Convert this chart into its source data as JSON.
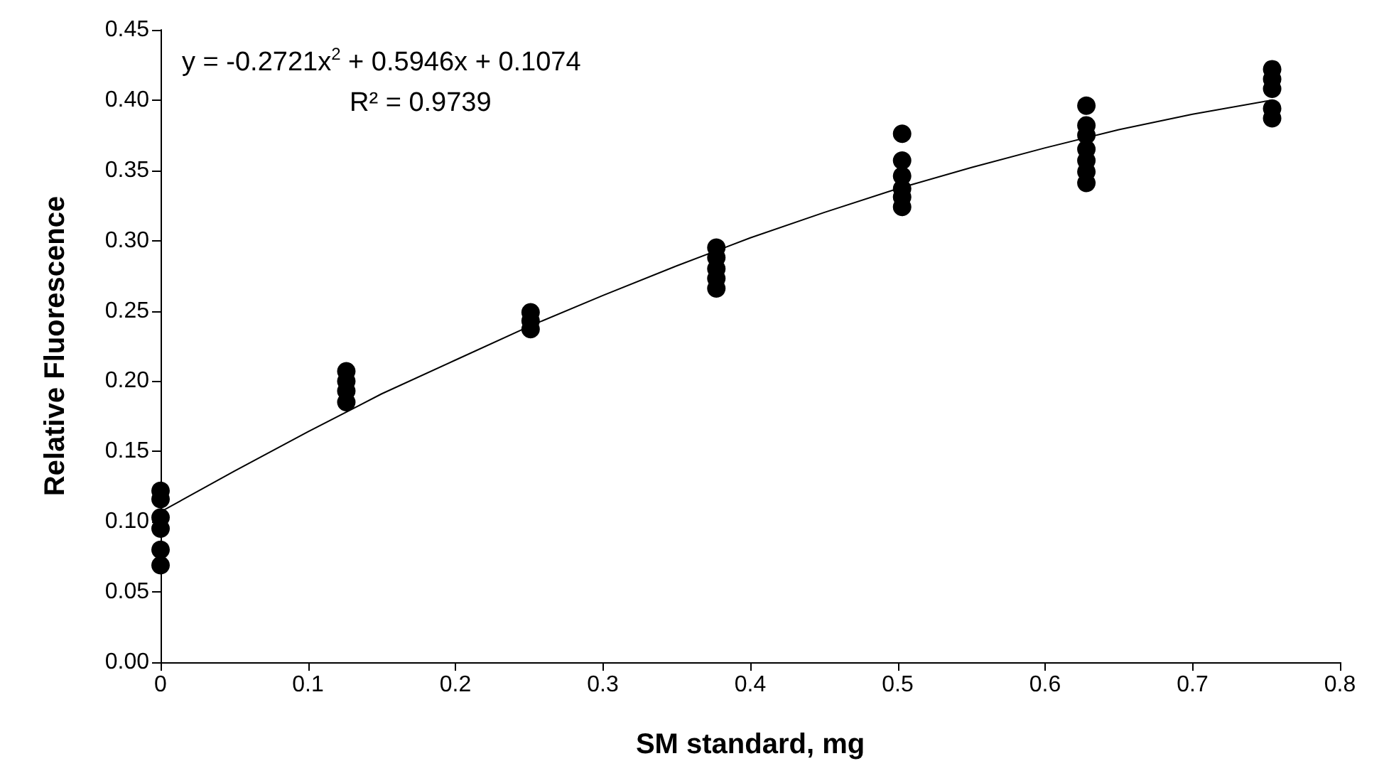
{
  "chart_data": {
    "type": "scatter",
    "xlabel": "SM standard, mg",
    "ylabel": "Relative Fluorescence",
    "annotations": [
      "y = -0.2721x$^{2}$ + 0.5946x + 0.1074",
      "R² = 0.9739"
    ],
    "xlim": [
      0,
      0.8
    ],
    "xticks": [
      0,
      0.1,
      0.2,
      0.3,
      0.4,
      0.5,
      0.6,
      0.7,
      0.8
    ],
    "ylim": [
      0,
      0.45
    ],
    "yticks": [
      {
        "value": 0,
        "label": "0.00"
      },
      {
        "value": 0.05,
        "label": "0.05"
      },
      {
        "value": 0.1,
        "label": "0.10"
      },
      {
        "value": 0.15,
        "label": "0.15"
      },
      {
        "value": 0.2,
        "label": "0.20"
      },
      {
        "value": 0.25,
        "label": "0.25"
      },
      {
        "value": 0.3,
        "label": "0.30"
      },
      {
        "value": 0.35,
        "label": "0.35"
      },
      {
        "value": 0.4,
        "label": "0.40"
      },
      {
        "value": 0.45,
        "label": "0.45"
      }
    ],
    "grid": false,
    "series": [
      {
        "color": "#000000",
        "marker": "circle",
        "x": [
          0,
          0,
          0,
          0,
          0,
          0,
          0.126,
          0.126,
          0.126,
          0.126,
          0.251,
          0.251,
          0.251,
          0.377,
          0.377,
          0.377,
          0.377,
          0.377,
          0.503,
          0.503,
          0.503,
          0.503,
          0.503,
          0.503,
          0.628,
          0.628,
          0.628,
          0.628,
          0.628,
          0.628,
          0.628,
          0.754,
          0.754,
          0.754,
          0.754,
          0.754
        ],
        "values": [
          0.122,
          0.116,
          0.103,
          0.095,
          0.08,
          0.069,
          0.207,
          0.2,
          0.193,
          0.185,
          0.249,
          0.243,
          0.237,
          0.295,
          0.288,
          0.28,
          0.273,
          0.266,
          0.376,
          0.357,
          0.346,
          0.337,
          0.331,
          0.324,
          0.396,
          0.382,
          0.375,
          0.365,
          0.357,
          0.349,
          0.341,
          0.422,
          0.415,
          0.408,
          0.394,
          0.387
        ]
      },
      {
        "type": "line",
        "color": "#000000",
        "marker": "none",
        "line_style": "solid",
        "x": [
          0,
          0.05,
          0.1,
          0.15,
          0.2,
          0.25,
          0.3,
          0.35,
          0.4,
          0.45,
          0.5,
          0.55,
          0.6,
          0.65,
          0.7,
          0.754
        ],
        "values": [
          0.107,
          0.136,
          0.164,
          0.191,
          0.215,
          0.239,
          0.261,
          0.282,
          0.302,
          0.32,
          0.337,
          0.352,
          0.366,
          0.379,
          0.39,
          0.4
        ]
      }
    ]
  }
}
